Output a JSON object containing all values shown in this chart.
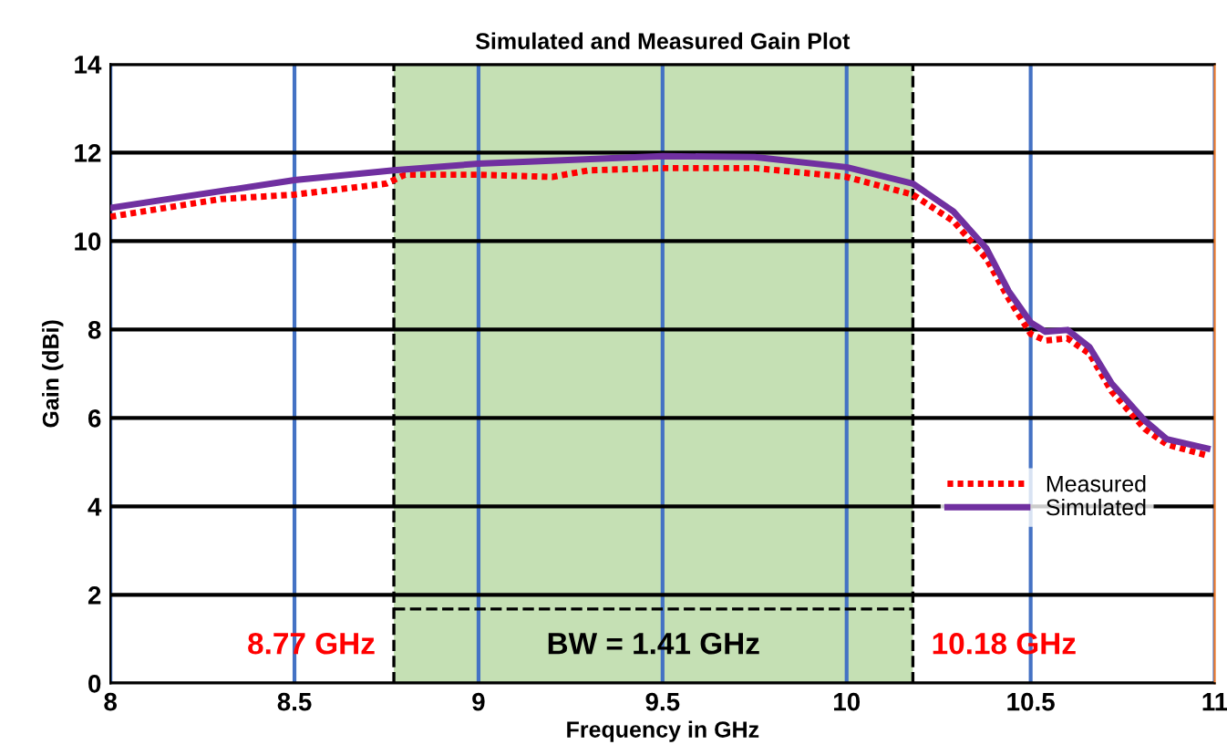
{
  "chart_data": {
    "type": "line",
    "title": "Simulated and Measured Gain Plot",
    "xlabel": "Frequency in GHz",
    "ylabel": "Gain (dBi)",
    "xlim": [
      8,
      11
    ],
    "xticks": [
      8,
      8.5,
      9,
      9.5,
      10,
      10.5,
      11
    ],
    "ylim": [
      0,
      14
    ],
    "yticks": [
      0,
      2,
      4,
      6,
      8,
      10,
      12,
      14
    ],
    "grid": true,
    "legend": "right",
    "series": [
      {
        "name": "Measured",
        "color": "#ff0000",
        "line_style": "dotted",
        "x": [
          8.0,
          8.3,
          8.5,
          8.75,
          8.8,
          9.0,
          9.2,
          9.3,
          9.5,
          9.75,
          10.0,
          10.18,
          10.29,
          10.38,
          10.44,
          10.5,
          10.54,
          10.6,
          10.66,
          10.72,
          10.81,
          10.87,
          10.98
        ],
        "values": [
          10.55,
          10.95,
          11.05,
          11.3,
          11.5,
          11.5,
          11.45,
          11.6,
          11.65,
          11.65,
          11.45,
          11.05,
          10.45,
          9.6,
          8.7,
          7.9,
          7.75,
          7.8,
          7.45,
          6.6,
          5.75,
          5.4,
          5.15
        ]
      },
      {
        "name": "Simulated",
        "color": "#7030a0",
        "line_style": "solid",
        "x": [
          8.0,
          8.5,
          8.77,
          9.0,
          9.5,
          9.75,
          10.0,
          10.18,
          10.29,
          10.38,
          10.44,
          10.5,
          10.54,
          10.6,
          10.66,
          10.72,
          10.81,
          10.87,
          10.98
        ],
        "values": [
          10.75,
          11.38,
          11.6,
          11.75,
          11.92,
          11.9,
          11.67,
          11.3,
          10.67,
          9.83,
          8.87,
          8.16,
          7.95,
          7.99,
          7.6,
          6.78,
          5.94,
          5.52,
          5.31
        ]
      }
    ],
    "bands": [
      {
        "axis": "x",
        "from": 8.77,
        "to": 10.18,
        "label": "BW = 1.41 GHz",
        "color": "#c5e0b4"
      }
    ],
    "ref_lines": [
      {
        "axis": "x",
        "value": 8.77,
        "label": "8.77 GHz",
        "color": "#000000",
        "line_style": "dashed"
      },
      {
        "axis": "x",
        "value": 10.18,
        "label": "10.18 GHz",
        "color": "#000000",
        "line_style": "dashed"
      }
    ]
  }
}
